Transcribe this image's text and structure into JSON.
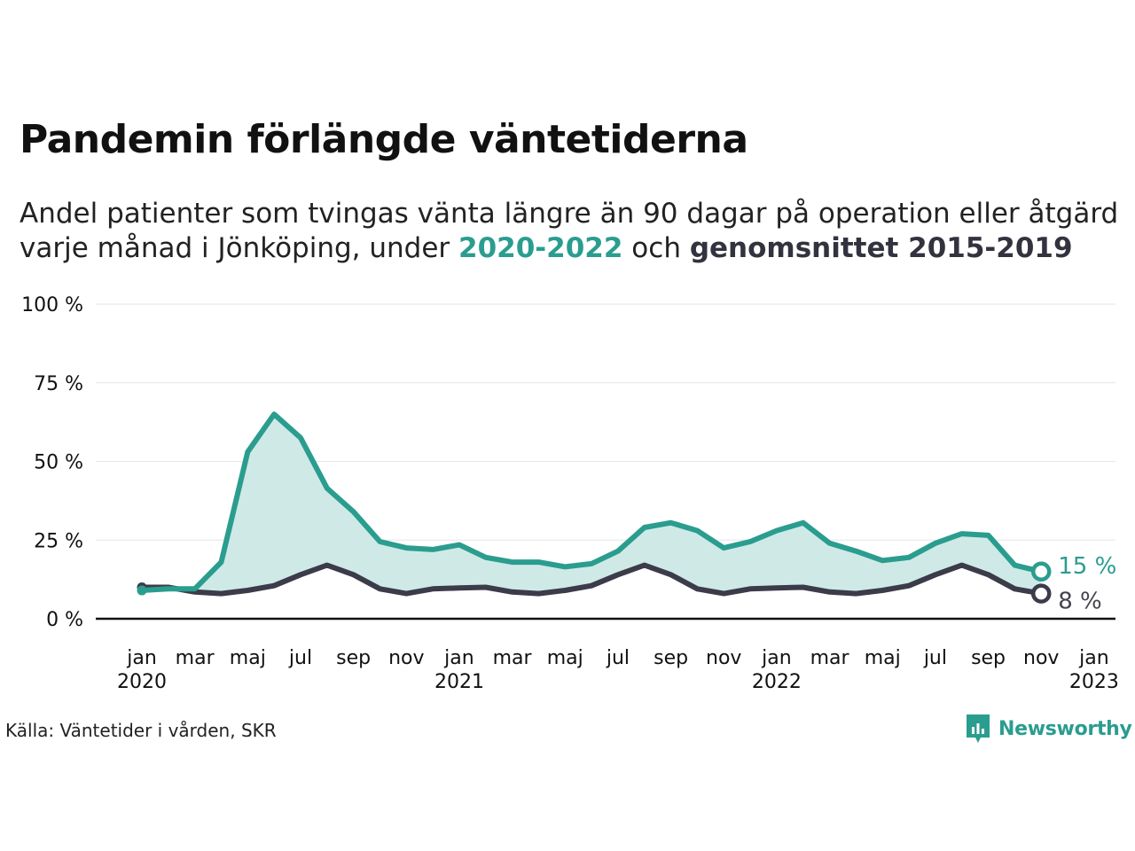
{
  "title": "Pandemin förlängde väntetiderna",
  "subtitle": {
    "line1": "Andel patienter som tvingas vänta längre än 90 dagar på operation eller åtgärd",
    "line2_pre": "varje månad i Jönköping, under ",
    "series1_label": "2020-2022",
    "mid": " och ",
    "series2_label": "genomsnittet 2015-2019"
  },
  "source": "Källa: Väntetider i vården, SKR",
  "brand": "Newsworthy",
  "colors": {
    "series1": "#2a9d8f",
    "series2": "#3b3b4a",
    "fill": "#cfeae6",
    "grid": "#e6e6e6",
    "axis": "#111111"
  },
  "chart_data": {
    "type": "line",
    "ylim": [
      0,
      100
    ],
    "y_ticks": [
      {
        "value": 0,
        "label": "0 %"
      },
      {
        "value": 25,
        "label": "25 %"
      },
      {
        "value": 50,
        "label": "50 %"
      },
      {
        "value": 75,
        "label": "75 %"
      },
      {
        "value": 100,
        "label": "100 %"
      }
    ],
    "x_ticks": [
      {
        "index": 0,
        "label": "jan",
        "year": "2020"
      },
      {
        "index": 2,
        "label": "mar"
      },
      {
        "index": 4,
        "label": "maj"
      },
      {
        "index": 6,
        "label": "jul"
      },
      {
        "index": 8,
        "label": "sep"
      },
      {
        "index": 10,
        "label": "nov"
      },
      {
        "index": 12,
        "label": "jan",
        "year": "2021"
      },
      {
        "index": 14,
        "label": "mar"
      },
      {
        "index": 16,
        "label": "maj"
      },
      {
        "index": 18,
        "label": "jul"
      },
      {
        "index": 20,
        "label": "sep"
      },
      {
        "index": 22,
        "label": "nov"
      },
      {
        "index": 24,
        "label": "jan",
        "year": "2022"
      },
      {
        "index": 26,
        "label": "mar"
      },
      {
        "index": 28,
        "label": "maj"
      },
      {
        "index": 30,
        "label": "jul"
      },
      {
        "index": 32,
        "label": "sep"
      },
      {
        "index": 34,
        "label": "nov"
      },
      {
        "index": 36,
        "label": "jan",
        "year": "2023"
      }
    ],
    "series": [
      {
        "values": [
          9,
          9.5,
          9.5,
          18,
          53,
          65,
          57.5,
          41.5,
          34,
          24.5,
          22.5,
          22,
          23.5,
          19.5,
          18,
          18,
          16.5,
          17.5,
          21.5,
          29,
          30.5,
          28,
          22.5,
          24.5,
          28,
          30.5,
          24,
          21.5,
          18.5,
          19.5,
          24,
          27,
          26.5,
          17,
          15
        ],
        "end_label": "15 %"
      },
      {
        "values": [
          10,
          10,
          8.5,
          8,
          9,
          10.5,
          14,
          17,
          14,
          9.5,
          8,
          9.5,
          9.8,
          10,
          8.5,
          8,
          9,
          10.5,
          14,
          17,
          14,
          9.5,
          8,
          9.5,
          9.8,
          10,
          8.5,
          8,
          9,
          10.5,
          14,
          17,
          14,
          9.5,
          8
        ],
        "end_label": "8 %"
      }
    ],
    "grid": true
  }
}
